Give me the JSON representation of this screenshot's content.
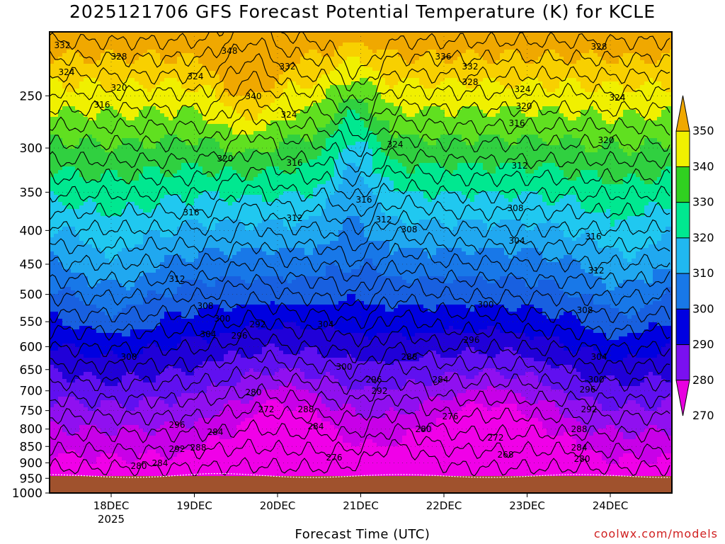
{
  "chart_data": {
    "type": "heatmap",
    "title": "2025121706 GFS Forecast Potential Temperature (K) for KCLE",
    "xlabel": "Forecast Time (UTC)",
    "credit": "coolwx.com/models",
    "x_ticks": [
      {
        "label": "18DEC",
        "sub": "2025"
      },
      {
        "label": "19DEC",
        "sub": ""
      },
      {
        "label": "20DEC",
        "sub": ""
      },
      {
        "label": "21DEC",
        "sub": ""
      },
      {
        "label": "22DEC",
        "sub": ""
      },
      {
        "label": "23DEC",
        "sub": ""
      },
      {
        "label": "24DEC",
        "sub": ""
      }
    ],
    "y_ticks": [
      "250",
      "300",
      "350",
      "400",
      "450",
      "500",
      "550",
      "600",
      "650",
      "700",
      "750",
      "800",
      "850",
      "900",
      "950",
      "1000"
    ],
    "colorbar": {
      "labels": [
        "350",
        "340",
        "330",
        "320",
        "310",
        "300",
        "290",
        "280",
        "270"
      ],
      "colors": [
        "#f0a800",
        "#f0f000",
        "#30d020",
        "#00e890",
        "#20b8f0",
        "#1878e8",
        "#0000e0",
        "#7a10f0",
        "#e800e0"
      ]
    },
    "contour_labels": [
      {
        "text": "332",
        "pos": [
          88,
          68
        ]
      },
      {
        "text": "328",
        "pos": [
          168,
          84
        ]
      },
      {
        "text": "324",
        "pos": [
          94,
          106
        ]
      },
      {
        "text": "320",
        "pos": [
          168,
          128
        ]
      },
      {
        "text": "316",
        "pos": [
          144,
          152
        ]
      },
      {
        "text": "324",
        "pos": [
          276,
          112
        ]
      },
      {
        "text": "348",
        "pos": [
          324,
          76
        ]
      },
      {
        "text": "332",
        "pos": [
          406,
          98
        ]
      },
      {
        "text": "340",
        "pos": [
          358,
          140
        ]
      },
      {
        "text": "324",
        "pos": [
          408,
          166
        ]
      },
      {
        "text": "320",
        "pos": [
          318,
          228
        ]
      },
      {
        "text": "316",
        "pos": [
          416,
          234
        ]
      },
      {
        "text": "324",
        "pos": [
          558,
          208
        ]
      },
      {
        "text": "336",
        "pos": [
          626,
          84
        ]
      },
      {
        "text": "332",
        "pos": [
          664,
          98
        ]
      },
      {
        "text": "328",
        "pos": [
          664,
          120
        ]
      },
      {
        "text": "324",
        "pos": [
          738,
          130
        ]
      },
      {
        "text": "320",
        "pos": [
          740,
          154
        ]
      },
      {
        "text": "316",
        "pos": [
          730,
          178
        ]
      },
      {
        "text": "328",
        "pos": [
          846,
          70
        ]
      },
      {
        "text": "324",
        "pos": [
          872,
          142
        ]
      },
      {
        "text": "320",
        "pos": [
          856,
          202
        ]
      },
      {
        "text": "312",
        "pos": [
          734,
          238
        ]
      },
      {
        "text": "316",
        "pos": [
          514,
          286
        ]
      },
      {
        "text": "316",
        "pos": [
          270,
          304
        ]
      },
      {
        "text": "312",
        "pos": [
          416,
          312
        ]
      },
      {
        "text": "312",
        "pos": [
          542,
          314
        ]
      },
      {
        "text": "308",
        "pos": [
          578,
          328
        ]
      },
      {
        "text": "308",
        "pos": [
          728,
          298
        ]
      },
      {
        "text": "304",
        "pos": [
          730,
          344
        ]
      },
      {
        "text": "316",
        "pos": [
          838,
          338
        ]
      },
      {
        "text": "312",
        "pos": [
          250,
          398
        ]
      },
      {
        "text": "312",
        "pos": [
          842,
          386
        ]
      },
      {
        "text": "308",
        "pos": [
          290,
          436
        ]
      },
      {
        "text": "300",
        "pos": [
          314,
          454
        ]
      },
      {
        "text": "292",
        "pos": [
          364,
          462
        ]
      },
      {
        "text": "304",
        "pos": [
          460,
          462
        ]
      },
      {
        "text": "296",
        "pos": [
          338,
          478
        ]
      },
      {
        "text": "304",
        "pos": [
          294,
          476
        ]
      },
      {
        "text": "300",
        "pos": [
          686,
          434
        ]
      },
      {
        "text": "308",
        "pos": [
          826,
          442
        ]
      },
      {
        "text": "296",
        "pos": [
          666,
          484
        ]
      },
      {
        "text": "300",
        "pos": [
          182,
          508
        ]
      },
      {
        "text": "304",
        "pos": [
          846,
          508
        ]
      },
      {
        "text": "288",
        "pos": [
          578,
          508
        ]
      },
      {
        "text": "300",
        "pos": [
          486,
          522
        ]
      },
      {
        "text": "284",
        "pos": [
          622,
          540
        ]
      },
      {
        "text": "300",
        "pos": [
          842,
          540
        ]
      },
      {
        "text": "296",
        "pos": [
          528,
          540
        ]
      },
      {
        "text": "292",
        "pos": [
          536,
          556
        ]
      },
      {
        "text": "296",
        "pos": [
          830,
          554
        ]
      },
      {
        "text": "280",
        "pos": [
          358,
          558
        ]
      },
      {
        "text": "292",
        "pos": [
          832,
          582
        ]
      },
      {
        "text": "272",
        "pos": [
          376,
          582
        ]
      },
      {
        "text": "288",
        "pos": [
          432,
          582
        ]
      },
      {
        "text": "276",
        "pos": [
          636,
          592
        ]
      },
      {
        "text": "296",
        "pos": [
          250,
          604
        ]
      },
      {
        "text": "284",
        "pos": [
          446,
          606
        ]
      },
      {
        "text": "280",
        "pos": [
          598,
          610
        ]
      },
      {
        "text": "288",
        "pos": [
          818,
          610
        ]
      },
      {
        "text": "284",
        "pos": [
          304,
          614
        ]
      },
      {
        "text": "272",
        "pos": [
          700,
          622
        ]
      },
      {
        "text": "292",
        "pos": [
          250,
          638
        ]
      },
      {
        "text": "288",
        "pos": [
          280,
          636
        ]
      },
      {
        "text": "284",
        "pos": [
          818,
          636
        ]
      },
      {
        "text": "268",
        "pos": [
          714,
          646
        ]
      },
      {
        "text": "276",
        "pos": [
          472,
          650
        ]
      },
      {
        "text": "280",
        "pos": [
          822,
          652
        ]
      },
      {
        "text": "284",
        "pos": [
          226,
          658
        ]
      },
      {
        "text": "280",
        "pos": [
          196,
          662
        ]
      }
    ]
  }
}
